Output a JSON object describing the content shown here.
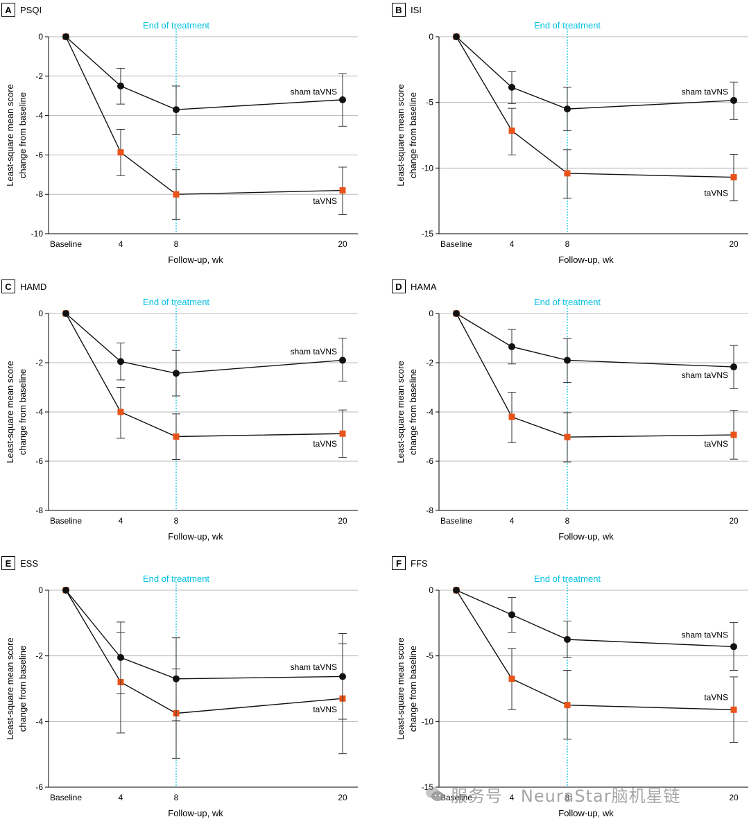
{
  "colors": {
    "sham": "#111111",
    "active": "#e8531a",
    "eot_line": "#00c0e0",
    "grid": "#b8b8b8",
    "axis": "#000000"
  },
  "watermark": {
    "icon": "wechat-icon",
    "text": "服务号 · NeuraStar脑机星链"
  },
  "chart_data": [
    {
      "type": "line",
      "panel": "A",
      "title": "PSQI",
      "xlabel": "Follow-up, wk",
      "ylabel_line1": "Least-square mean score",
      "ylabel_line2": "change from baseline",
      "x": [
        0,
        4,
        8,
        20
      ],
      "x_tick_labels": [
        "Baseline",
        "4",
        "8",
        "20"
      ],
      "ylim": [
        -10,
        0
      ],
      "y_ticks": [
        0,
        -2,
        -4,
        -6,
        -8,
        -10
      ],
      "y_tick_labels": [
        "0",
        "-2",
        "-4",
        "-6",
        "-8",
        "-10"
      ],
      "grid": "horizontal",
      "annotation": {
        "text": "End of treatment",
        "x": 8
      },
      "series": [
        {
          "name": "sham taVNS",
          "marker": "circle",
          "label_anchor": {
            "x": 20,
            "y": -2.8
          },
          "values": [
            0,
            -2.5,
            -3.7,
            -3.2
          ],
          "err_low": [
            0,
            -3.42,
            -4.95,
            -4.55
          ],
          "err_high": [
            0,
            -1.6,
            -2.5,
            -1.88
          ]
        },
        {
          "name": "taVNS",
          "marker": "square",
          "label_anchor": {
            "x": 20,
            "y": -8.35
          },
          "values": [
            0,
            -5.87,
            -8.0,
            -7.8
          ],
          "err_low": [
            0,
            -7.05,
            -9.27,
            -9.03
          ],
          "err_high": [
            0,
            -4.7,
            -6.75,
            -6.62
          ]
        }
      ]
    },
    {
      "type": "line",
      "panel": "B",
      "title": "ISI",
      "xlabel": "Follow-up, wk",
      "ylabel_line1": "Least-square mean score",
      "ylabel_line2": "change from baseline",
      "x": [
        0,
        4,
        8,
        20
      ],
      "x_tick_labels": [
        "Baseline",
        "4",
        "8",
        "20"
      ],
      "ylim": [
        -15,
        0
      ],
      "y_ticks": [
        0,
        -5,
        -10,
        -15
      ],
      "y_tick_labels": [
        "0",
        "-5",
        "-10",
        "-15"
      ],
      "grid": "horizontal",
      "annotation": {
        "text": "End of treatment",
        "x": 8
      },
      "series": [
        {
          "name": "sham taVNS",
          "marker": "circle",
          "label_anchor": {
            "x": 20,
            "y": -4.2
          },
          "values": [
            0,
            -3.85,
            -5.5,
            -4.85
          ],
          "err_low": [
            0,
            -5.1,
            -7.15,
            -6.3
          ],
          "err_high": [
            0,
            -2.65,
            -3.85,
            -3.45
          ]
        },
        {
          "name": "taVNS",
          "marker": "square",
          "label_anchor": {
            "x": 20,
            "y": -11.9
          },
          "values": [
            0,
            -7.15,
            -10.4,
            -10.7
          ],
          "err_low": [
            0,
            -9.0,
            -12.3,
            -12.5
          ],
          "err_high": [
            0,
            -5.45,
            -8.6,
            -8.95
          ]
        }
      ]
    },
    {
      "type": "line",
      "panel": "C",
      "title": "HAMD",
      "xlabel": "Follow-up, wk",
      "ylabel_line1": "Least-square mean score",
      "ylabel_line2": "change from baseline",
      "x": [
        0,
        4,
        8,
        20
      ],
      "x_tick_labels": [
        "Baseline",
        "4",
        "8",
        "20"
      ],
      "ylim": [
        -8,
        0
      ],
      "y_ticks": [
        0,
        -2,
        -4,
        -6,
        -8
      ],
      "y_tick_labels": [
        "0",
        "-2",
        "-4",
        "-6",
        "-8"
      ],
      "grid": "horizontal",
      "annotation": {
        "text": "End of treatment",
        "x": 8
      },
      "series": [
        {
          "name": "sham taVNS",
          "marker": "circle",
          "label_anchor": {
            "x": 20,
            "y": -1.55
          },
          "values": [
            0,
            -1.95,
            -2.43,
            -1.9
          ],
          "err_low": [
            0,
            -2.7,
            -3.35,
            -2.75
          ],
          "err_high": [
            0,
            -1.2,
            -1.5,
            -1.0
          ]
        },
        {
          "name": "taVNS",
          "marker": "square",
          "label_anchor": {
            "x": 20,
            "y": -5.3
          },
          "values": [
            0,
            -4.0,
            -5.0,
            -4.88
          ],
          "err_low": [
            0,
            -5.07,
            -5.93,
            -5.85
          ],
          "err_high": [
            0,
            -3.0,
            -4.08,
            -3.92
          ]
        }
      ]
    },
    {
      "type": "line",
      "panel": "D",
      "title": "HAMA",
      "xlabel": "Follow-up, wk",
      "ylabel_line1": "Least-square mean score",
      "ylabel_line2": "change from baseline",
      "x": [
        0,
        4,
        8,
        20
      ],
      "x_tick_labels": [
        "Baseline",
        "4",
        "8",
        "20"
      ],
      "ylim": [
        -8,
        0
      ],
      "y_ticks": [
        0,
        -2,
        -4,
        -6,
        -8
      ],
      "y_tick_labels": [
        "0",
        "-2",
        "-4",
        "-6",
        "-8"
      ],
      "grid": "horizontal",
      "annotation": {
        "text": "End of treatment",
        "x": 8
      },
      "series": [
        {
          "name": "sham taVNS",
          "marker": "circle",
          "label_anchor": {
            "x": 20,
            "y": -2.5
          },
          "values": [
            0,
            -1.35,
            -1.9,
            -2.17
          ],
          "err_low": [
            0,
            -2.05,
            -2.8,
            -3.05
          ],
          "err_high": [
            0,
            -0.65,
            -1.02,
            -1.3
          ]
        },
        {
          "name": "taVNS",
          "marker": "square",
          "label_anchor": {
            "x": 20,
            "y": -5.3
          },
          "values": [
            0,
            -4.2,
            -5.02,
            -4.93
          ],
          "err_low": [
            0,
            -5.25,
            -6.03,
            -5.92
          ],
          "err_high": [
            0,
            -3.2,
            -4.03,
            -3.93
          ]
        }
      ]
    },
    {
      "type": "line",
      "panel": "E",
      "title": "ESS",
      "xlabel": "Follow-up, wk",
      "ylabel_line1": "Least-square mean score",
      "ylabel_line2": "change from baseline",
      "x": [
        0,
        4,
        8,
        20
      ],
      "x_tick_labels": [
        "Baseline",
        "4",
        "8",
        "20"
      ],
      "ylim": [
        -6,
        0
      ],
      "y_ticks": [
        0,
        -2,
        -4,
        -6
      ],
      "y_tick_labels": [
        "0",
        "-2",
        "-4",
        "-6"
      ],
      "grid": "horizontal",
      "annotation": {
        "text": "End of treatment",
        "x": 8
      },
      "series": [
        {
          "name": "sham taVNS",
          "marker": "circle",
          "label_anchor": {
            "x": 20,
            "y": -2.35
          },
          "values": [
            0,
            -2.05,
            -2.7,
            -2.63
          ],
          "err_low": [
            0,
            -3.15,
            -3.97,
            -3.93
          ],
          "err_high": [
            0,
            -0.97,
            -1.45,
            -1.32
          ]
        },
        {
          "name": "taVNS",
          "marker": "square",
          "label_anchor": {
            "x": 20,
            "y": -3.63
          },
          "values": [
            0,
            -2.8,
            -3.75,
            -3.3
          ],
          "err_low": [
            0,
            -4.35,
            -5.12,
            -4.98
          ],
          "err_high": [
            0,
            -1.28,
            -2.4,
            -1.63
          ]
        }
      ]
    },
    {
      "type": "line",
      "panel": "F",
      "title": "FFS",
      "xlabel": "Follow-up, wk",
      "ylabel_line1": "Least-square mean score",
      "ylabel_line2": "change from baseline",
      "x": [
        0,
        4,
        8,
        20
      ],
      "x_tick_labels": [
        "Baseline",
        "4",
        "8",
        "20"
      ],
      "ylim": [
        -15,
        0
      ],
      "y_ticks": [
        0,
        -5,
        -10,
        -15
      ],
      "y_tick_labels": [
        "0",
        "-5",
        "-10",
        "-15"
      ],
      "grid": "horizontal",
      "annotation": {
        "text": "End of treatment",
        "x": 8
      },
      "series": [
        {
          "name": "sham taVNS",
          "marker": "circle",
          "label_anchor": {
            "x": 20,
            "y": -3.4
          },
          "values": [
            0,
            -1.87,
            -3.75,
            -4.3
          ],
          "err_low": [
            0,
            -3.2,
            -5.15,
            -6.1
          ],
          "err_high": [
            0,
            -0.55,
            -2.35,
            -2.45
          ]
        },
        {
          "name": "taVNS",
          "marker": "square",
          "label_anchor": {
            "x": 20,
            "y": -8.15
          },
          "values": [
            0,
            -6.75,
            -8.75,
            -9.1
          ],
          "err_low": [
            0,
            -9.1,
            -11.35,
            -11.6
          ],
          "err_high": [
            0,
            -4.45,
            -6.1,
            -6.6
          ]
        }
      ]
    }
  ]
}
